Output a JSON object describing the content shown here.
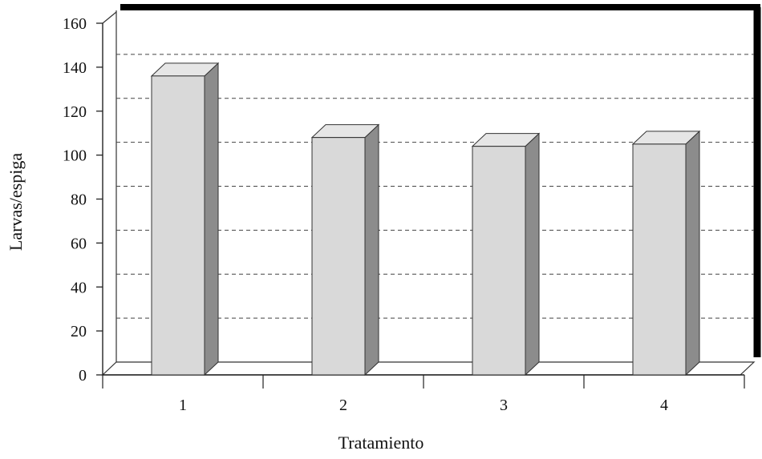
{
  "chart_data": {
    "type": "bar",
    "title": "",
    "xlabel": "Tratamiento",
    "ylabel": "Larvas/espiga",
    "categories": [
      "1",
      "2",
      "3",
      "4"
    ],
    "values": [
      136,
      108,
      104,
      105
    ],
    "ylim": [
      0,
      160
    ],
    "yticks": [
      "0",
      "20",
      "40",
      "60",
      "80",
      "100",
      "120",
      "140",
      "160"
    ],
    "grid": true,
    "style": "3d-bars",
    "colors": {
      "bar_front": "#d9d9d9",
      "bar_top": "#e6e6e6",
      "bar_side": "#8c8c8c"
    }
  }
}
